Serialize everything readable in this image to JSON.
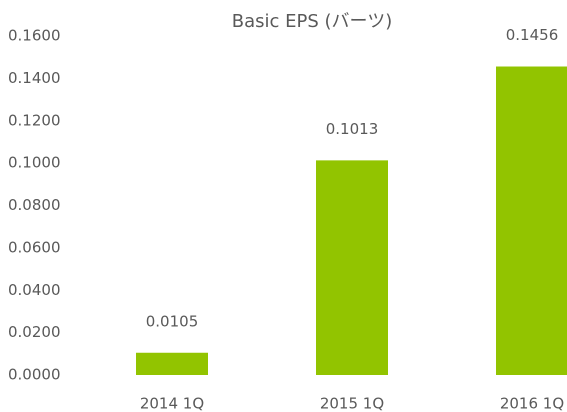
{
  "chart_data": {
    "type": "bar",
    "title": "Basic EPS (バーツ)",
    "categories": [
      "2014 1Q",
      "2015 1Q",
      "2016 1Q"
    ],
    "values": [
      0.0105,
      0.1013,
      0.1456
    ],
    "color": "#92c400",
    "ylim": [
      0,
      0.16
    ],
    "yticks": [
      {
        "value": 0,
        "label": "0.0000"
      },
      {
        "value": 0.02,
        "label": "0.0200"
      },
      {
        "value": 0.04,
        "label": "0.0400"
      },
      {
        "value": 0.06,
        "label": "0.0600"
      },
      {
        "value": 0.08,
        "label": "0.0800"
      },
      {
        "value": 0.1,
        "label": "0.1000"
      },
      {
        "value": 0.12,
        "label": "0.1200"
      },
      {
        "value": 0.14,
        "label": "0.1400"
      },
      {
        "value": 0.16,
        "label": "0.1600"
      }
    ],
    "grid": false
  }
}
